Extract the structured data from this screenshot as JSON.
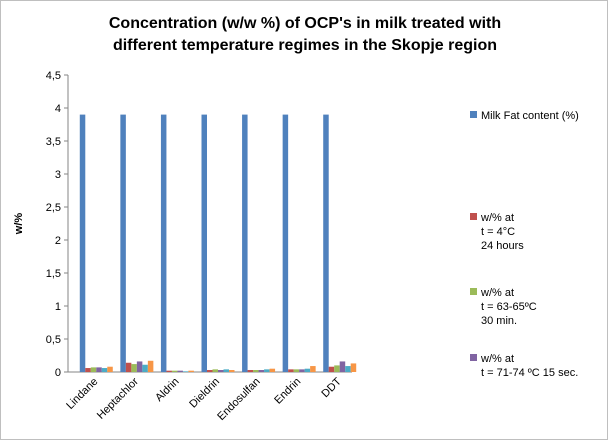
{
  "chart_data": {
    "type": "bar",
    "title": "Concentration (w/w %) of OCP's in milk treated with different temperature regimes in the Skopje region",
    "y_label": "w/%",
    "categories": [
      "Lindane",
      "Heptachlor",
      "Aldrin",
      "Dieldrin",
      "Endosulfan",
      "Endrin",
      "DDT"
    ],
    "series": [
      {
        "name": "Milk Fat content (%)",
        "color": "#4f81bd",
        "values": [
          3.9,
          3.9,
          3.9,
          3.9,
          3.9,
          3.9,
          3.9
        ]
      },
      {
        "name": "w/% at\nt = 4°C\n24 hours",
        "color": "#c0504d",
        "values": [
          0.06,
          0.14,
          0.02,
          0.03,
          0.03,
          0.04,
          0.08
        ]
      },
      {
        "name": "w/% at\nt = 63-65ºC\n30 min.",
        "color": "#9bbb59",
        "values": [
          0.07,
          0.12,
          0.02,
          0.04,
          0.03,
          0.04,
          0.1
        ]
      },
      {
        "name": "w/% at\nt = 71-74 ºC 15 sec.",
        "color": "#8064a2",
        "values": [
          0.07,
          0.16,
          0.02,
          0.03,
          0.03,
          0.04,
          0.16
        ]
      },
      {
        "color": "#4bacc6",
        "values": [
          0.06,
          0.11,
          0.01,
          0.04,
          0.04,
          0.05,
          0.09
        ]
      },
      {
        "color": "#f79646",
        "values": [
          0.08,
          0.17,
          0.02,
          0.03,
          0.05,
          0.09,
          0.13
        ]
      }
    ],
    "ylim": [
      0,
      4.5
    ],
    "yticks": [
      0,
      {
        "value": 0.5,
        "label": "0,5"
      },
      1,
      {
        "value": 1.5,
        "label": "1,5"
      },
      2,
      {
        "value": 2.5,
        "label": "2,5"
      },
      3,
      {
        "value": 3.5,
        "label": "3,5"
      },
      4,
      {
        "value": 4.5,
        "label": "4,5"
      }
    ],
    "grid": false
  }
}
